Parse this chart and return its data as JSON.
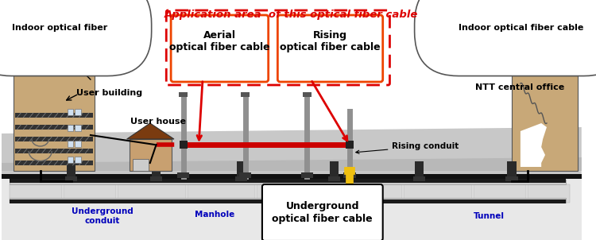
{
  "bg_color": "#ffffff",
  "label_aerial": "Aerial\noptical fiber cable",
  "label_rising": "Rising\noptical fiber cable",
  "label_underground": "Underground\noptical fiber cable",
  "label_app": "Application area  of this optical fiber cable",
  "label_indoor_left": "Indoor optical fiber",
  "label_indoor_right": "Indoor optical fiber cable",
  "label_user_building": "User building",
  "label_user_house": "User house",
  "label_ntt": "NTT central office",
  "label_underground_conduit": "Underground\nconduit",
  "label_manhole": "Manhole",
  "label_rising_conduit": "Rising conduit",
  "label_tunnel": "Tunnel",
  "road_gray": "#c8c8c8",
  "dark_road": "#b0b0b0",
  "ground_black": "#111111",
  "underground_bg": "#e8e8e8",
  "conduit_gray": "#888888",
  "building_tan": "#c8a070",
  "roof_brown": "#7a3b10",
  "aerial_red": "#cc0000",
  "yellow_cable": "#f0c010",
  "blue_text": "#0000bb",
  "red_box": "#dd0000",
  "orange_box": "#ee4400",
  "pole_gray": "#909090",
  "manhole_dark": "#444444",
  "white": "#ffffff",
  "black": "#000000"
}
